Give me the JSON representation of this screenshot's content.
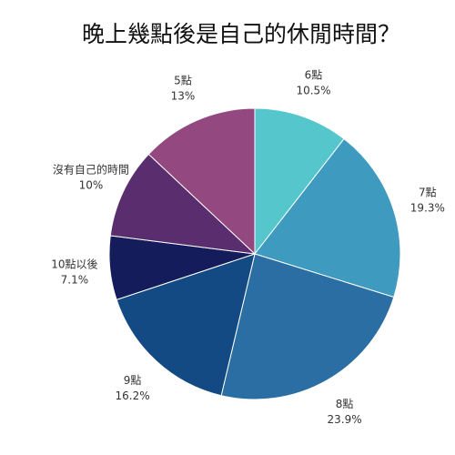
{
  "chart_data": {
    "type": "pie",
    "title": "晚上幾點後是自己的休閒時間？",
    "unit": "%",
    "slices": [
      {
        "label": "6點",
        "value": 10.5,
        "display": "10.5%",
        "color": "#55c6cc"
      },
      {
        "label": "7點",
        "value": 19.3,
        "display": "19.3%",
        "color": "#3e9bbf"
      },
      {
        "label": "8點",
        "value": 23.9,
        "display": "23.9%",
        "color": "#2a6ea3"
      },
      {
        "label": "9點",
        "value": 16.2,
        "display": "16.2%",
        "color": "#144a83"
      },
      {
        "label": "10點以後",
        "value": 7.1,
        "display": "7.1%",
        "color": "#141c5c"
      },
      {
        "label": "沒有自己的時間",
        "value": 10,
        "display": "10%",
        "color": "#5a2e6e"
      },
      {
        "label": "5點",
        "value": 13,
        "display": "13%",
        "color": "#93487f"
      }
    ],
    "start": "top",
    "direction": "clockwise",
    "legend": "none",
    "labels": "outside"
  }
}
